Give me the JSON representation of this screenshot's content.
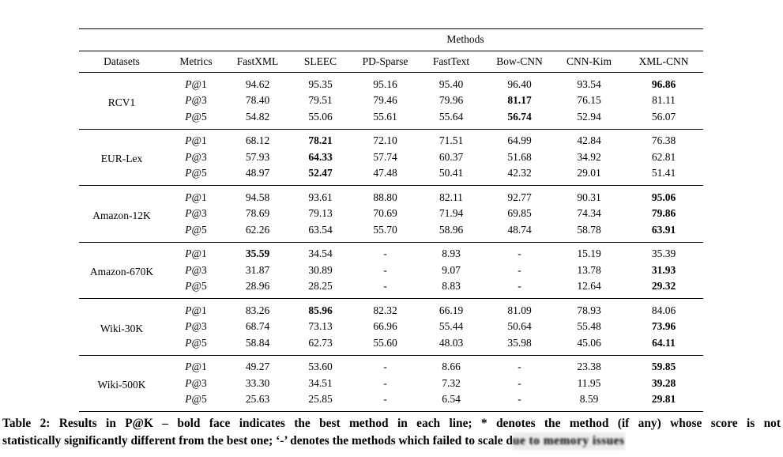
{
  "table": {
    "spanner": "Methods",
    "columns": [
      "Datasets",
      "Metrics",
      "FastXML",
      "SLEEC",
      "PD-Sparse",
      "FastText",
      "Bow-CNN",
      "CNN-Kim",
      "XML-CNN"
    ],
    "groups": [
      {
        "dataset": "RCV1",
        "rows": [
          {
            "metric": "P@1",
            "cells": [
              {
                "v": "94.62"
              },
              {
                "v": "95.35"
              },
              {
                "v": "95.16"
              },
              {
                "v": "95.40"
              },
              {
                "v": "96.40"
              },
              {
                "v": "93.54"
              },
              {
                "v": "96.86",
                "b": true
              }
            ]
          },
          {
            "metric": "P@3",
            "cells": [
              {
                "v": "78.40"
              },
              {
                "v": "79.51"
              },
              {
                "v": "79.46"
              },
              {
                "v": "79.96"
              },
              {
                "v": "81.17",
                "b": true
              },
              {
                "v": "76.15"
              },
              {
                "v": "81.11"
              }
            ]
          },
          {
            "metric": "P@5",
            "cells": [
              {
                "v": "54.82"
              },
              {
                "v": "55.06"
              },
              {
                "v": "55.61"
              },
              {
                "v": "55.64"
              },
              {
                "v": "56.74",
                "b": true
              },
              {
                "v": "52.94"
              },
              {
                "v": "56.07"
              }
            ]
          }
        ]
      },
      {
        "dataset": "EUR-Lex",
        "rows": [
          {
            "metric": "P@1",
            "cells": [
              {
                "v": "68.12"
              },
              {
                "v": "78.21",
                "b": true
              },
              {
                "v": "72.10"
              },
              {
                "v": "71.51"
              },
              {
                "v": "64.99"
              },
              {
                "v": "42.84"
              },
              {
                "v": "76.38"
              }
            ]
          },
          {
            "metric": "P@3",
            "cells": [
              {
                "v": "57.93"
              },
              {
                "v": "64.33",
                "b": true
              },
              {
                "v": "57.74"
              },
              {
                "v": "60.37"
              },
              {
                "v": "51.68"
              },
              {
                "v": "34.92"
              },
              {
                "v": "62.81"
              }
            ]
          },
          {
            "metric": "P@5",
            "cells": [
              {
                "v": "48.97"
              },
              {
                "v": "52.47",
                "b": true
              },
              {
                "v": "47.48"
              },
              {
                "v": "50.41"
              },
              {
                "v": "42.32"
              },
              {
                "v": "29.01"
              },
              {
                "v": "51.41"
              }
            ]
          }
        ]
      },
      {
        "dataset": "Amazon-12K",
        "rows": [
          {
            "metric": "P@1",
            "cells": [
              {
                "v": "94.58"
              },
              {
                "v": "93.61"
              },
              {
                "v": "88.80"
              },
              {
                "v": "82.11"
              },
              {
                "v": "92.77"
              },
              {
                "v": "90.31"
              },
              {
                "v": "95.06",
                "b": true
              }
            ]
          },
          {
            "metric": "P@3",
            "cells": [
              {
                "v": "78.69"
              },
              {
                "v": "79.13"
              },
              {
                "v": "70.69"
              },
              {
                "v": "71.94"
              },
              {
                "v": "69.85"
              },
              {
                "v": "74.34"
              },
              {
                "v": "79.86",
                "b": true
              }
            ]
          },
          {
            "metric": "P@5",
            "cells": [
              {
                "v": "62.26"
              },
              {
                "v": "63.54"
              },
              {
                "v": "55.70"
              },
              {
                "v": "58.96"
              },
              {
                "v": "48.74"
              },
              {
                "v": "58.78"
              },
              {
                "v": "63.91",
                "b": true
              }
            ]
          }
        ]
      },
      {
        "dataset": "Amazon-670K",
        "rows": [
          {
            "metric": "P@1",
            "cells": [
              {
                "v": "35.59",
                "b": true
              },
              {
                "v": "34.54"
              },
              {
                "v": "-"
              },
              {
                "v": "8.93"
              },
              {
                "v": "-"
              },
              {
                "v": "15.19"
              },
              {
                "v": "35.39"
              }
            ]
          },
          {
            "metric": "P@3",
            "cells": [
              {
                "v": "31.87"
              },
              {
                "v": "30.89"
              },
              {
                "v": "-"
              },
              {
                "v": "9.07"
              },
              {
                "v": "-"
              },
              {
                "v": "13.78"
              },
              {
                "v": "31.93",
                "b": true
              }
            ]
          },
          {
            "metric": "P@5",
            "cells": [
              {
                "v": "28.96"
              },
              {
                "v": "28.25"
              },
              {
                "v": "-"
              },
              {
                "v": "8.83"
              },
              {
                "v": "-"
              },
              {
                "v": "12.64"
              },
              {
                "v": "29.32",
                "b": true
              }
            ]
          }
        ]
      },
      {
        "dataset": "Wiki-30K",
        "rows": [
          {
            "metric": "P@1",
            "cells": [
              {
                "v": "83.26"
              },
              {
                "v": "85.96",
                "b": true
              },
              {
                "v": "82.32"
              },
              {
                "v": "66.19"
              },
              {
                "v": "81.09"
              },
              {
                "v": "78.93"
              },
              {
                "v": "84.06"
              }
            ]
          },
          {
            "metric": "P@3",
            "cells": [
              {
                "v": "68.74"
              },
              {
                "v": "73.13"
              },
              {
                "v": "66.96"
              },
              {
                "v": "55.44"
              },
              {
                "v": "50.64"
              },
              {
                "v": "55.48"
              },
              {
                "v": "73.96",
                "b": true
              }
            ]
          },
          {
            "metric": "P@5",
            "cells": [
              {
                "v": "58.84"
              },
              {
                "v": "62.73"
              },
              {
                "v": "55.60"
              },
              {
                "v": "48.03"
              },
              {
                "v": "35.98"
              },
              {
                "v": "45.06"
              },
              {
                "v": "64.11",
                "b": true
              }
            ]
          }
        ]
      },
      {
        "dataset": "Wiki-500K",
        "rows": [
          {
            "metric": "P@1",
            "cells": [
              {
                "v": "49.27"
              },
              {
                "v": "53.60"
              },
              {
                "v": "-"
              },
              {
                "v": "8.66"
              },
              {
                "v": "-"
              },
              {
                "v": "23.38"
              },
              {
                "v": "59.85",
                "b": true
              }
            ]
          },
          {
            "metric": "P@3",
            "cells": [
              {
                "v": "33.30"
              },
              {
                "v": "34.51"
              },
              {
                "v": "-"
              },
              {
                "v": "7.32"
              },
              {
                "v": "-"
              },
              {
                "v": "11.95"
              },
              {
                "v": "39.28",
                "b": true
              }
            ]
          },
          {
            "metric": "P@5",
            "cells": [
              {
                "v": "25.63"
              },
              {
                "v": "25.85"
              },
              {
                "v": "-"
              },
              {
                "v": "6.54"
              },
              {
                "v": "-"
              },
              {
                "v": "8.59"
              },
              {
                "v": "29.81",
                "b": true
              }
            ]
          }
        ]
      }
    ]
  },
  "caption": {
    "line1": "Table 2: Results in P@K – bold face indicates the best method in each line; * denotes the method (if any) whose score is not",
    "line2": "statistically significantly different from the best one; ‘-’ denotes the methods which failed to scale d",
    "garbled_tail": "ue to memory issues"
  }
}
